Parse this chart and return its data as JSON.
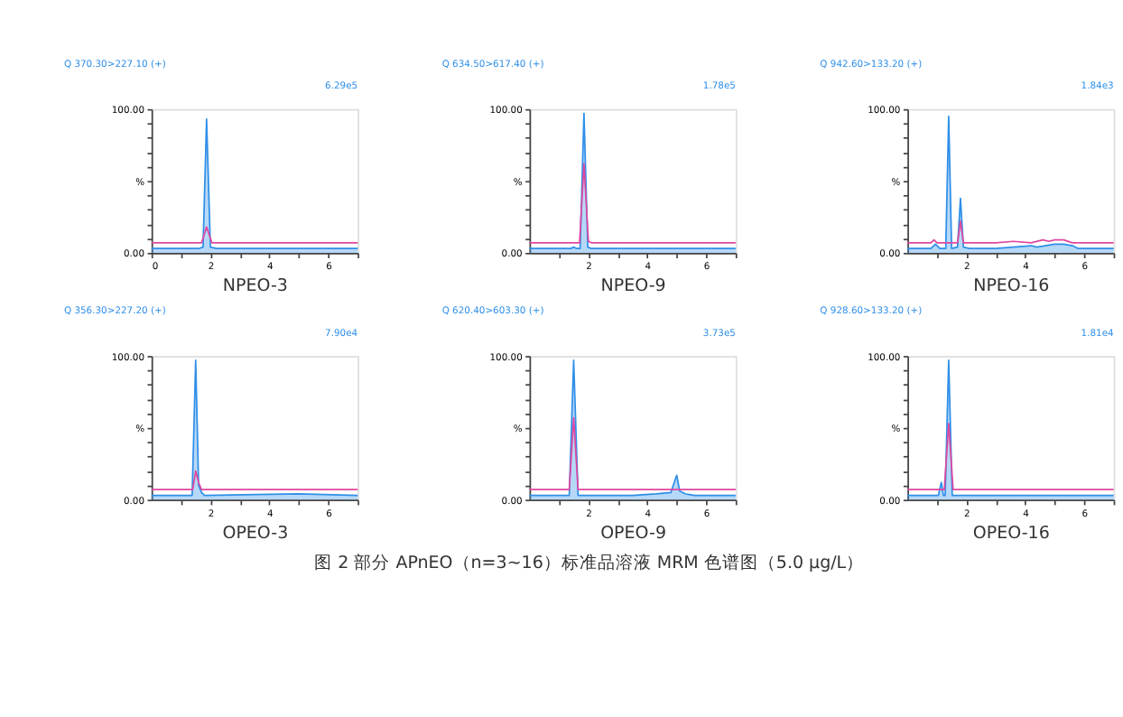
{
  "chart_data": [
    {
      "type": "line",
      "title": "Q 370.30>227.10 (+)",
      "xlabel": "NPEO-3",
      "annotations": [
        "6.29e5"
      ],
      "xlim": [
        0,
        7
      ],
      "xticks": [
        0,
        {
          "value": 1,
          "label": null
        },
        2,
        {
          "value": 3,
          "label": null
        },
        4,
        {
          "value": 5,
          "label": null
        },
        6,
        {
          "value": 7,
          "label": null
        }
      ],
      "ylim": [
        0,
        100
      ],
      "yticks": [
        {
          "value": 0,
          "label": "0.00"
        },
        {
          "value": 10,
          "label": null
        },
        {
          "value": 20,
          "label": null
        },
        {
          "value": 30,
          "label": null
        },
        {
          "value": 40,
          "label": null
        },
        {
          "value": 50,
          "label": "%"
        },
        {
          "value": 60,
          "label": null
        },
        {
          "value": 70,
          "label": null
        },
        {
          "value": 80,
          "label": null
        },
        {
          "value": 90,
          "label": null
        },
        {
          "value": 100,
          "label": "100.00"
        }
      ],
      "grid": false,
      "series": [
        {
          "type": "line",
          "color": "#e0479e",
          "x": [
            0,
            1.7,
            1.87,
            2.05,
            7
          ],
          "values": [
            7,
            7,
            18,
            7,
            7
          ]
        },
        {
          "type": "area",
          "color": "#2f8fe8",
          "x": [
            0,
            1.6,
            1.75,
            1.87,
            2.0,
            2.2,
            7
          ],
          "values": [
            3,
            3,
            4,
            93,
            4,
            3,
            3
          ]
        }
      ]
    },
    {
      "type": "line",
      "title": "Q 634.50>617.40 (+)",
      "xlabel": "NPEO-9",
      "annotations": [
        "1.78e5"
      ],
      "xlim": [
        0,
        7
      ],
      "xticks": [
        {
          "value": 1,
          "label": null
        },
        2,
        {
          "value": 3,
          "label": null
        },
        4,
        {
          "value": 5,
          "label": null
        },
        6,
        {
          "value": 7,
          "label": null
        }
      ],
      "ylim": [
        0,
        100
      ],
      "yticks": [
        {
          "value": 0,
          "label": "0.00"
        },
        {
          "value": 10,
          "label": null
        },
        {
          "value": 20,
          "label": null
        },
        {
          "value": 30,
          "label": null
        },
        {
          "value": 40,
          "label": null
        },
        {
          "value": 50,
          "label": "%"
        },
        {
          "value": 60,
          "label": null
        },
        {
          "value": 70,
          "label": null
        },
        {
          "value": 80,
          "label": null
        },
        {
          "value": 90,
          "label": null
        },
        {
          "value": 100,
          "label": "100.00"
        }
      ],
      "grid": false,
      "series": [
        {
          "type": "line",
          "color": "#e0479e",
          "x": [
            0,
            1.7,
            1.85,
            2.0,
            2.1,
            7
          ],
          "values": [
            7,
            7,
            62,
            8,
            7,
            7
          ]
        },
        {
          "type": "area",
          "color": "#2f8fe8",
          "x": [
            0,
            1.4,
            1.5,
            1.6,
            1.72,
            1.85,
            1.98,
            2.1,
            7
          ],
          "values": [
            3,
            3,
            4,
            3,
            3,
            97,
            4,
            3,
            3
          ]
        }
      ]
    },
    {
      "type": "line",
      "title": "Q 942.60>133.20 (+)",
      "xlabel": "NPEO-16",
      "annotations": [
        "1.84e3"
      ],
      "xlim": [
        0,
        7
      ],
      "xticks": [
        {
          "value": 1,
          "label": null
        },
        2,
        {
          "value": 3,
          "label": null
        },
        4,
        {
          "value": 5,
          "label": null
        },
        6,
        {
          "value": 7,
          "label": null
        }
      ],
      "ylim": [
        0,
        100
      ],
      "yticks": [
        {
          "value": 0,
          "label": "0.00"
        },
        {
          "value": 10,
          "label": null
        },
        {
          "value": 20,
          "label": null
        },
        {
          "value": 30,
          "label": null
        },
        {
          "value": 40,
          "label": null
        },
        {
          "value": 50,
          "label": "%"
        },
        {
          "value": 60,
          "label": null
        },
        {
          "value": 70,
          "label": null
        },
        {
          "value": 80,
          "label": null
        },
        {
          "value": 90,
          "label": null
        },
        {
          "value": 100,
          "label": "100.00"
        }
      ],
      "grid": false,
      "series": [
        {
          "type": "line",
          "color": "#e0479e",
          "x": [
            0,
            0.8,
            0.9,
            1.0,
            1.7,
            1.8,
            1.9,
            3.0,
            3.6,
            4.2,
            4.6,
            4.8,
            5.0,
            5.3,
            5.6,
            7
          ],
          "values": [
            7,
            7,
            9,
            7,
            7,
            22,
            7,
            7,
            8,
            7,
            9,
            8,
            9,
            9,
            7,
            7
          ]
        },
        {
          "type": "area",
          "color": "#2f8fe8",
          "x": [
            0,
            0.8,
            0.95,
            1.1,
            1.3,
            1.4,
            1.5,
            1.7,
            1.8,
            1.9,
            2.1,
            3.0,
            3.6,
            4.2,
            4.4,
            5.0,
            5.3,
            5.6,
            5.8,
            7
          ],
          "values": [
            3,
            3,
            6,
            3,
            3,
            95,
            3,
            4,
            38,
            4,
            3,
            3,
            4,
            5,
            4,
            6,
            6,
            5,
            3,
            3
          ]
        }
      ]
    },
    {
      "type": "line",
      "title": "Q 356.30>227.20 (+)",
      "xlabel": "OPEO-3",
      "annotations": [
        "7.90e4"
      ],
      "xlim": [
        0,
        7
      ],
      "xticks": [
        {
          "value": 1,
          "label": null
        },
        2,
        {
          "value": 3,
          "label": null
        },
        4,
        {
          "value": 5,
          "label": null
        },
        6,
        {
          "value": 7,
          "label": null
        }
      ],
      "ylim": [
        0,
        100
      ],
      "yticks": [
        {
          "value": 0,
          "label": "0.00"
        },
        {
          "value": 10,
          "label": null
        },
        {
          "value": 20,
          "label": null
        },
        {
          "value": 30,
          "label": null
        },
        {
          "value": 40,
          "label": null
        },
        {
          "value": 50,
          "label": "%"
        },
        {
          "value": 60,
          "label": null
        },
        {
          "value": 70,
          "label": null
        },
        {
          "value": 80,
          "label": null
        },
        {
          "value": 90,
          "label": null
        },
        {
          "value": 100,
          "label": "100.00"
        }
      ],
      "grid": false,
      "series": [
        {
          "type": "line",
          "color": "#e0479e",
          "x": [
            0,
            1.4,
            1.5,
            1.6,
            1.7,
            7
          ],
          "values": [
            7,
            7,
            20,
            12,
            7,
            7
          ]
        },
        {
          "type": "area",
          "color": "#2f8fe8",
          "x": [
            0,
            1.38,
            1.5,
            1.6,
            1.7,
            1.8,
            5.0,
            7
          ],
          "values": [
            3,
            3,
            97,
            10,
            5,
            3,
            4,
            3
          ]
        }
      ]
    },
    {
      "type": "line",
      "title": "Q 620.40>603.30 (+)",
      "xlabel": "OPEO-9",
      "annotations": [
        "3.73e5"
      ],
      "xlim": [
        0,
        7
      ],
      "xticks": [
        {
          "value": 1,
          "label": null
        },
        2,
        {
          "value": 3,
          "label": null
        },
        4,
        {
          "value": 5,
          "label": null
        },
        6,
        {
          "value": 7,
          "label": null
        }
      ],
      "ylim": [
        0,
        100
      ],
      "yticks": [
        {
          "value": 0,
          "label": "0.00"
        },
        {
          "value": 10,
          "label": null
        },
        {
          "value": 20,
          "label": null
        },
        {
          "value": 30,
          "label": null
        },
        {
          "value": 40,
          "label": null
        },
        {
          "value": 50,
          "label": "%"
        },
        {
          "value": 60,
          "label": null
        },
        {
          "value": 70,
          "label": null
        },
        {
          "value": 80,
          "label": null
        },
        {
          "value": 90,
          "label": null
        },
        {
          "value": 100,
          "label": "100.00"
        }
      ],
      "grid": false,
      "series": [
        {
          "type": "line",
          "color": "#e0479e",
          "x": [
            0,
            1.35,
            1.5,
            1.65,
            7
          ],
          "values": [
            7,
            7,
            57,
            7,
            7
          ]
        },
        {
          "type": "area",
          "color": "#2f8fe8",
          "x": [
            0,
            1.35,
            1.5,
            1.65,
            3.5,
            4.3,
            4.8,
            4.9,
            5.0,
            5.1,
            5.3,
            5.6,
            7
          ],
          "values": [
            3,
            3,
            97,
            3,
            3,
            4,
            5,
            11,
            17,
            6,
            4,
            3,
            3
          ]
        }
      ]
    },
    {
      "type": "line",
      "title": "Q 928.60>133.20 (+)",
      "xlabel": "OPEO-16",
      "annotations": [
        "1.81e4",
        "图 2  部分 APnEO（n=3~16）标准品溶液 MRM 色谱图（5.0 μg/L）"
      ],
      "xlim": [
        0,
        7
      ],
      "xticks": [
        {
          "value": 1,
          "label": null
        },
        2,
        {
          "value": 3,
          "label": null
        },
        4,
        {
          "value": 5,
          "label": null
        },
        6,
        {
          "value": 7,
          "label": null
        }
      ],
      "ylim": [
        0,
        100
      ],
      "yticks": [
        {
          "value": 0,
          "label": "0.00"
        },
        {
          "value": 10,
          "label": null
        },
        {
          "value": 20,
          "label": null
        },
        {
          "value": 30,
          "label": null
        },
        {
          "value": 40,
          "label": null
        },
        {
          "value": 50,
          "label": "%"
        },
        {
          "value": 60,
          "label": null
        },
        {
          "value": 70,
          "label": null
        },
        {
          "value": 80,
          "label": null
        },
        {
          "value": 90,
          "label": null
        },
        {
          "value": 100,
          "label": "100.00"
        }
      ],
      "grid": false,
      "series": [
        {
          "type": "line",
          "color": "#e0479e",
          "x": [
            0,
            1.25,
            1.4,
            1.55,
            7
          ],
          "values": [
            7,
            7,
            53,
            7,
            7
          ]
        },
        {
          "type": "area",
          "color": "#2f8fe8",
          "x": [
            0,
            1.05,
            1.15,
            1.22,
            1.28,
            1.4,
            1.52,
            1.6,
            7
          ],
          "values": [
            3,
            3,
            12,
            3,
            3,
            97,
            3,
            3,
            3
          ]
        }
      ]
    }
  ]
}
